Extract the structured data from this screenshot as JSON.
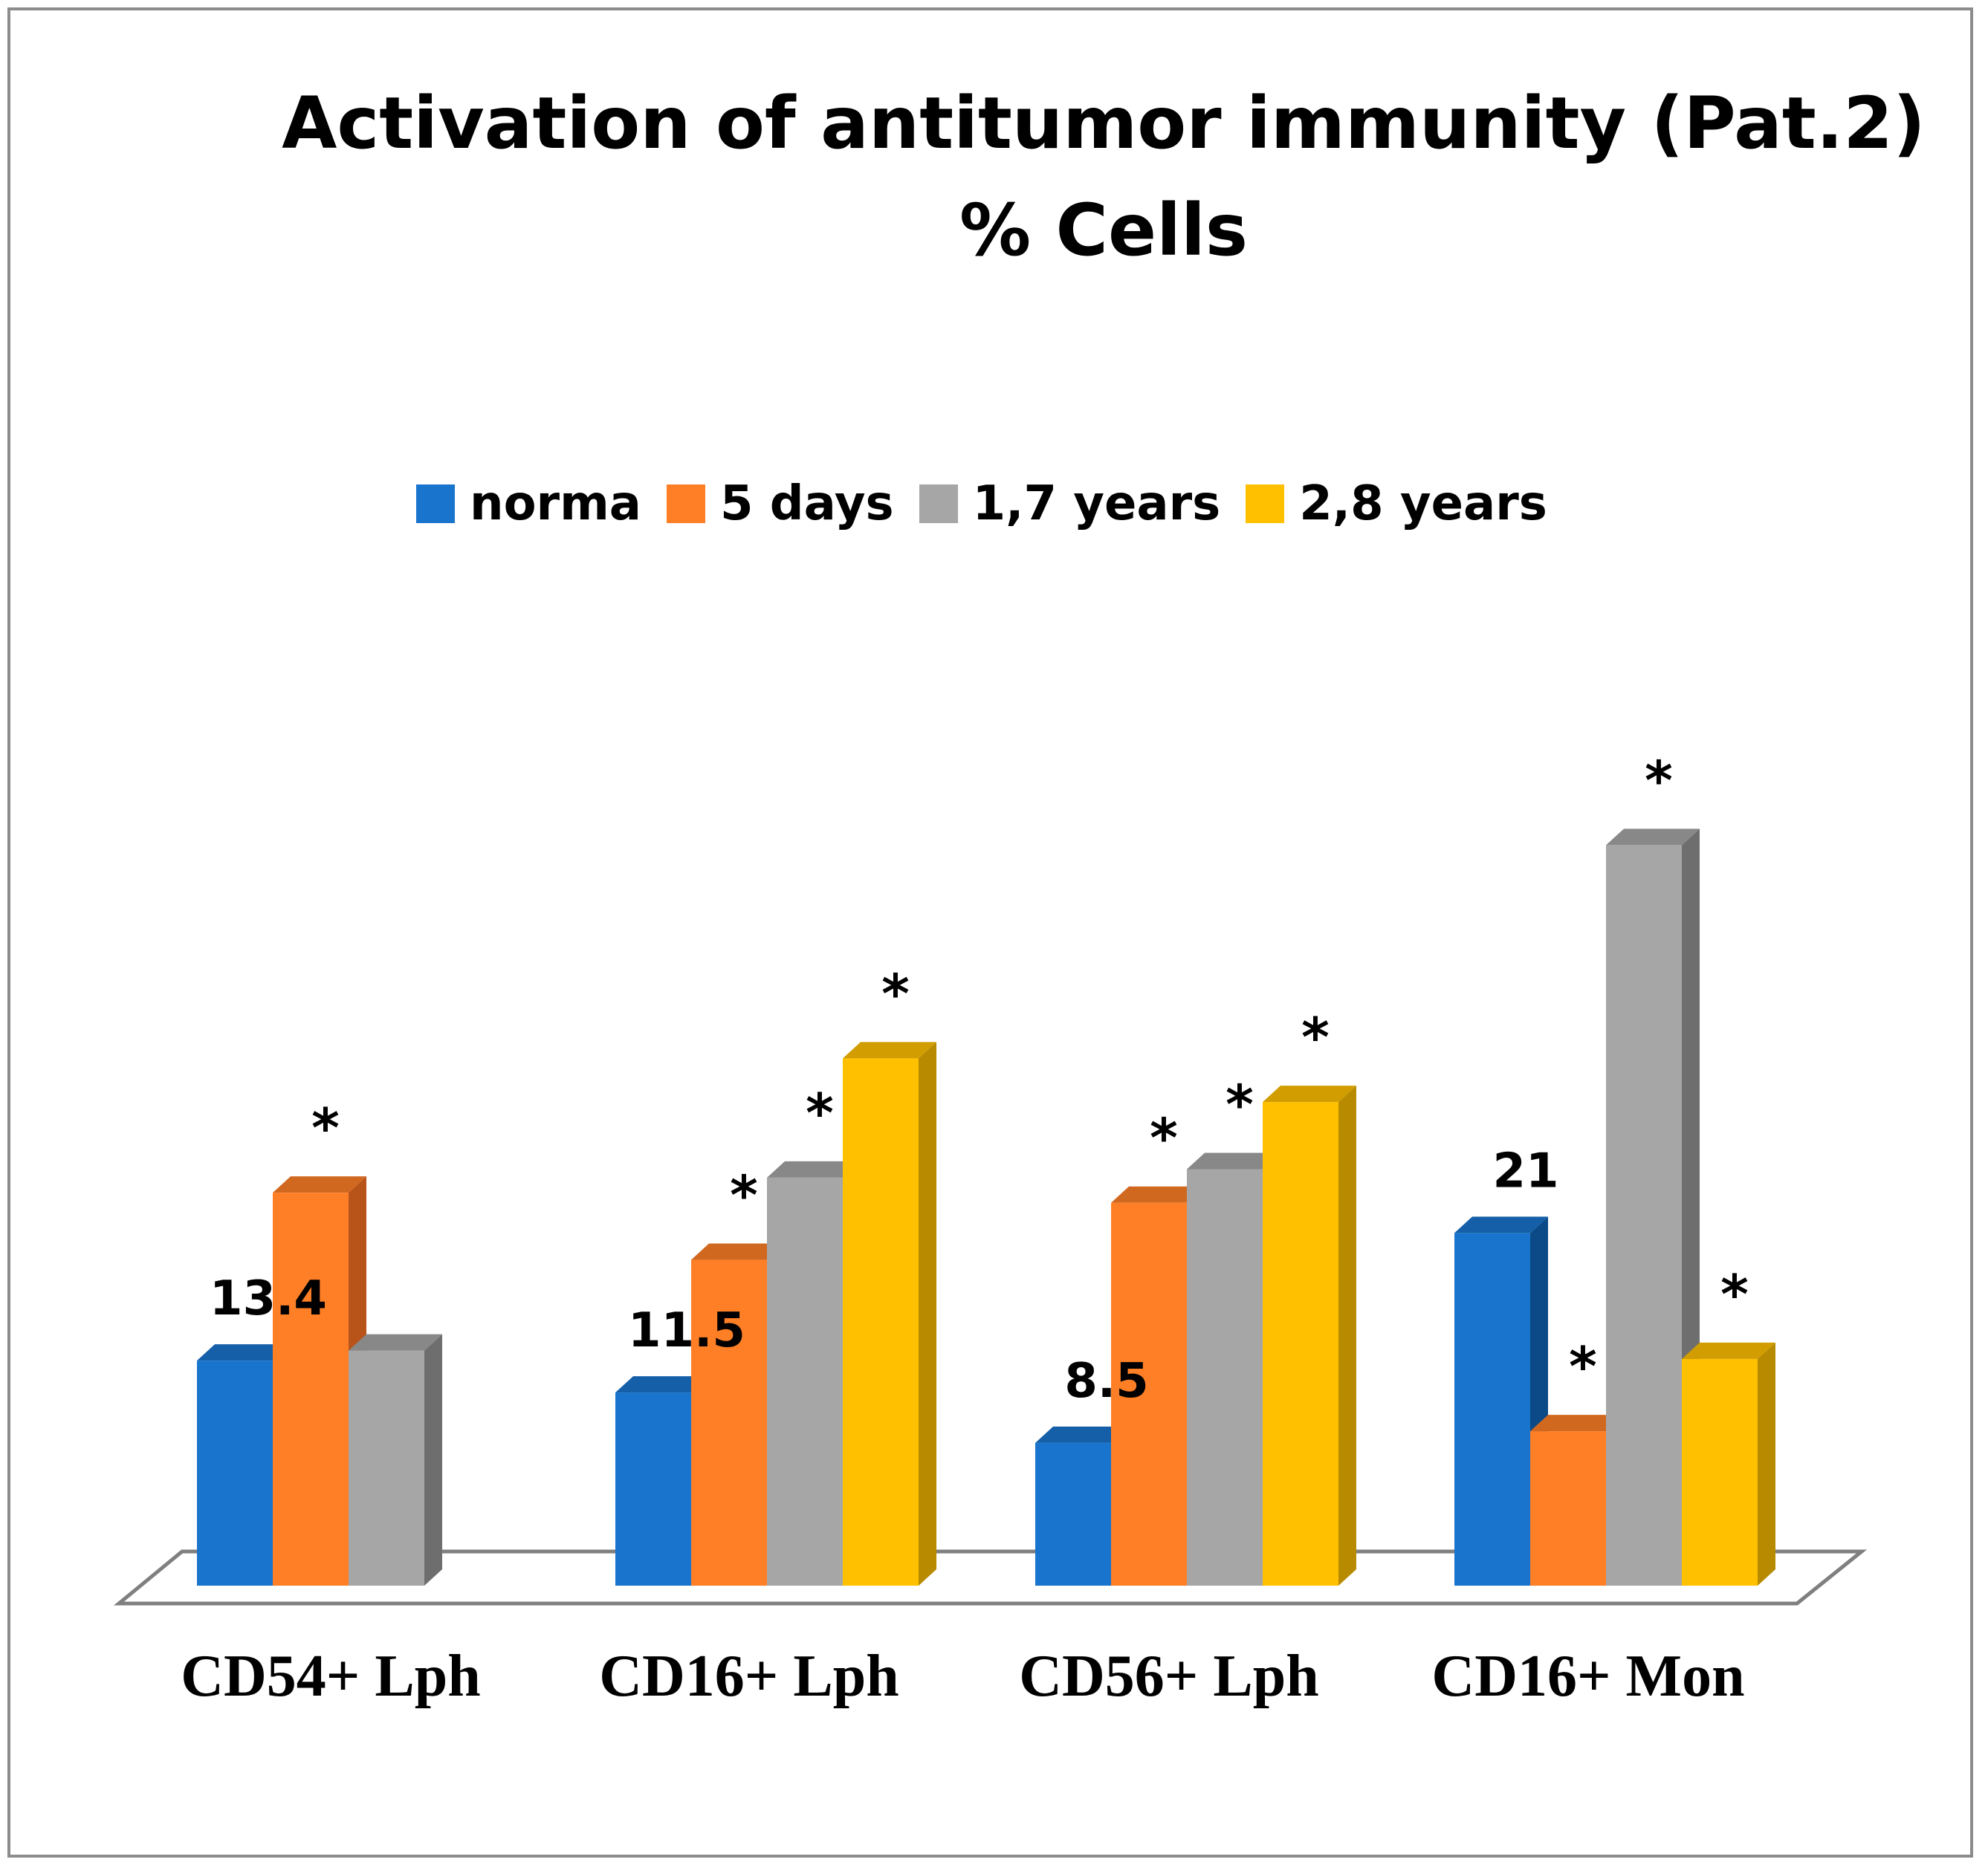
{
  "chart_data": {
    "type": "bar",
    "title": "Activation of antitumor immunity (Pat.2)",
    "subtitle": "% Cells",
    "categories": [
      "CD54+ Lph",
      "CD16+ Lph",
      "CD56+ Lph",
      "CD16+ Mon"
    ],
    "series": [
      {
        "name": "norma",
        "color": "#1874CD",
        "values": [
          13.4,
          11.5,
          8.5,
          21
        ]
      },
      {
        "name": "5 days",
        "color": "#FF7F27",
        "values": [
          23.4,
          19.4,
          22.8,
          9.2
        ]
      },
      {
        "name": "1,7 years",
        "color": "#A6A6A6",
        "values": [
          14,
          24.3,
          24.8,
          44.1
        ]
      },
      {
        "name": "2,8 years",
        "color": "#FFC000",
        "values": [
          null,
          31.4,
          28.8,
          13.5
        ]
      }
    ],
    "data_labels": [
      "13.4",
      "11.5",
      "8.5",
      "21"
    ],
    "significance_marker": "*",
    "significant": [
      [
        false,
        false,
        false,
        false
      ],
      [
        true,
        true,
        true,
        true
      ],
      [
        false,
        true,
        true,
        true
      ],
      [
        false,
        true,
        true,
        true
      ]
    ],
    "xlabel": "",
    "ylabel": "",
    "ylim": [
      0,
      50
    ],
    "grid": false,
    "legend_position": "top"
  }
}
